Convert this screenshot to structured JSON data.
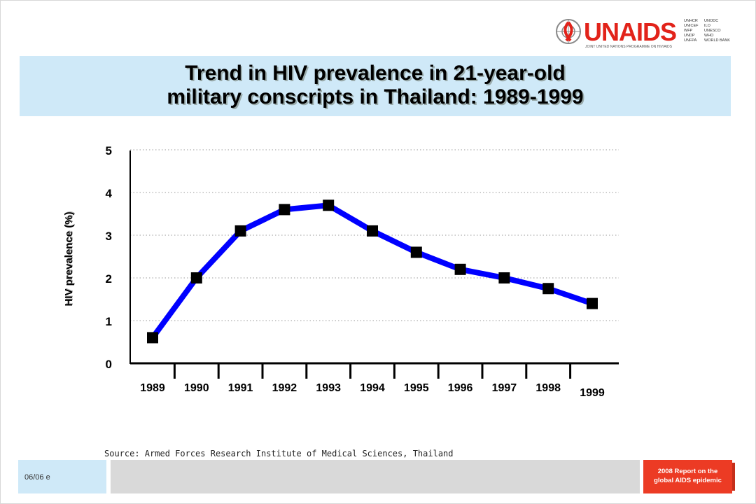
{
  "header": {
    "title_line1": "Trend in HIV prevalence in 21-year-old",
    "title_line2": "military conscripts in Thailand:  1989-1999"
  },
  "logo": {
    "name": "UNAIDS",
    "tagline": "JOINT UNITED NATIONS PROGRAMME ON HIV/AIDS",
    "cosponsors_col1": [
      "UNHCR",
      "UNICEF",
      "WFP",
      "UNDP",
      "UNFPA"
    ],
    "cosponsors_col2": [
      "UNODC",
      "ILO",
      "UNESCO",
      "WHO",
      "WORLD BANK"
    ],
    "brand_color": "#e2231a"
  },
  "chart_data": {
    "type": "line",
    "categories": [
      "1989",
      "1990",
      "1991",
      "1992",
      "1993",
      "1994",
      "1995",
      "1996",
      "1997",
      "1998",
      "1999"
    ],
    "series": [
      {
        "values": [
          0.6,
          2.0,
          3.1,
          3.6,
          3.7,
          3.1,
          2.6,
          2.2,
          2.0,
          1.75,
          1.4
        ]
      }
    ],
    "ylabel": "HIV prevalence (%)",
    "yticks": [
      "0",
      "1",
      "2",
      "3",
      "4",
      "5"
    ],
    "ylim": [
      0,
      5
    ],
    "grid": "dotted horizontal",
    "line_color": "#0000ff",
    "marker_color": "#000000"
  },
  "footer": {
    "source": "Source:  Armed Forces Research Institute of Medical Sciences, Thailand",
    "code": "06/06  e",
    "report_line1": "2008 Report on the",
    "report_line2": "global AIDS epidemic"
  }
}
